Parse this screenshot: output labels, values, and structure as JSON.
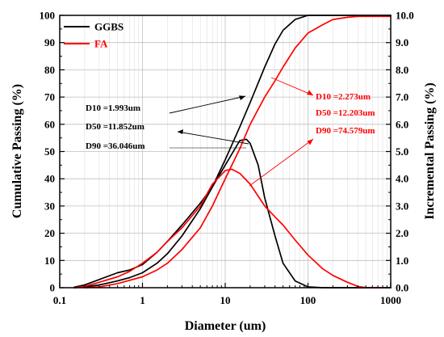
{
  "chart_data": {
    "type": "line",
    "x_scale": "log",
    "xlim": [
      0.1,
      1000
    ],
    "ylim": [
      0,
      100
    ],
    "y2lim": [
      0,
      10
    ],
    "xlabel": "Diameter (um)",
    "ylabel": "Cumulative Passing (%)",
    "y2label": "Incremental Passing (%)",
    "grid": true,
    "legend_position": "top-left",
    "x_ticks": [
      {
        "value": 0.1,
        "label": "0.1"
      },
      {
        "value": 1,
        "label": "1"
      },
      {
        "value": 10,
        "label": "10"
      },
      {
        "value": 100,
        "label": "100"
      },
      {
        "value": 1000,
        "label": "1000"
      }
    ],
    "y_ticks": [
      {
        "value": 0,
        "label": "0"
      },
      {
        "value": 10,
        "label": "10"
      },
      {
        "value": 20,
        "label": "20"
      },
      {
        "value": 30,
        "label": "30"
      },
      {
        "value": 40,
        "label": "40"
      },
      {
        "value": 50,
        "label": "50"
      },
      {
        "value": 60,
        "label": "60"
      },
      {
        "value": 70,
        "label": "70"
      },
      {
        "value": 80,
        "label": "80"
      },
      {
        "value": 90,
        "label": "90"
      },
      {
        "value": 100,
        "label": "100"
      }
    ],
    "y2_ticks": [
      {
        "value": 0,
        "label": "0.0"
      },
      {
        "value": 1,
        "label": "1.0"
      },
      {
        "value": 2,
        "label": "2.0"
      },
      {
        "value": 3,
        "label": "3.0"
      },
      {
        "value": 4,
        "label": "4.0"
      },
      {
        "value": 5,
        "label": "5.0"
      },
      {
        "value": 6,
        "label": "6.0"
      },
      {
        "value": 7,
        "label": "7.0"
      },
      {
        "value": 8,
        "label": "8.0"
      },
      {
        "value": 9,
        "label": "9.0"
      },
      {
        "value": 10,
        "label": "10.0"
      }
    ],
    "legend": [
      {
        "label": "GGBS",
        "color": "#000000"
      },
      {
        "label": "FA",
        "color": "#ff0000"
      }
    ],
    "series": [
      {
        "name": "GGBS",
        "kind": "cumulative",
        "axis": "left",
        "color": "#000000",
        "x": [
          0.15,
          0.2,
          0.3,
          0.5,
          0.7,
          1,
          1.5,
          2,
          3,
          5,
          7,
          10,
          15,
          20,
          30,
          40,
          50,
          70,
          100,
          200,
          1000
        ],
        "y": [
          0,
          0.3,
          1,
          2.5,
          3.7,
          5.5,
          9,
          12.5,
          19,
          29,
          37,
          47,
          59,
          68,
          81,
          89.5,
          94.5,
          98.5,
          100,
          100,
          100
        ]
      },
      {
        "name": "GGBS",
        "kind": "incremental",
        "axis": "right",
        "color": "#000000",
        "x": [
          0.15,
          0.2,
          0.3,
          0.5,
          0.7,
          1,
          1.5,
          2,
          3,
          5,
          7,
          10,
          15,
          18,
          20,
          25,
          30,
          40,
          50,
          70,
          100,
          150,
          1000
        ],
        "y": [
          0.02,
          0.1,
          0.3,
          0.55,
          0.65,
          0.85,
          1.3,
          1.7,
          2.3,
          3.1,
          3.7,
          4.5,
          5.4,
          5.45,
          5.3,
          4.5,
          3.3,
          1.9,
          0.9,
          0.25,
          0.03,
          0,
          0
        ]
      },
      {
        "name": "FA",
        "kind": "cumulative",
        "axis": "left",
        "color": "#ff0000",
        "x": [
          0.2,
          0.3,
          0.5,
          1,
          1.5,
          2,
          3,
          5,
          7,
          10,
          15,
          20,
          30,
          40,
          50,
          70,
          100,
          150,
          200,
          300,
          400,
          1000
        ],
        "y": [
          0,
          0.3,
          1.5,
          4,
          6.5,
          9,
          14,
          22,
          30,
          40,
          51,
          60,
          70,
          76,
          81,
          88,
          93.5,
          96.5,
          98.5,
          99.3,
          99.6,
          99.6
        ]
      },
      {
        "name": "FA",
        "kind": "incremental",
        "axis": "right",
        "color": "#ff0000",
        "x": [
          0.15,
          0.2,
          0.3,
          0.5,
          0.7,
          1,
          1.5,
          2,
          3,
          5,
          7,
          10,
          12,
          15,
          20,
          30,
          40,
          50,
          70,
          100,
          150,
          200,
          300,
          400,
          500,
          1000
        ],
        "y": [
          0,
          0.05,
          0.2,
          0.4,
          0.6,
          0.9,
          1.3,
          1.7,
          2.2,
          3,
          3.8,
          4.3,
          4.35,
          4.2,
          3.8,
          3,
          2.6,
          2.3,
          1.75,
          1.2,
          0.7,
          0.45,
          0.2,
          0.05,
          0,
          0
        ]
      }
    ],
    "annotations": [
      {
        "text": "D10 =1.993um",
        "color": "#000000"
      },
      {
        "text": "D50 =11.852um",
        "color": "#000000"
      },
      {
        "text": "D90 =36.046um",
        "color": "#000000"
      },
      {
        "text": "D10 =2.273um",
        "color": "#ff0000"
      },
      {
        "text": "D50 =12.203um",
        "color": "#ff0000"
      },
      {
        "text": "D90 =74.579um",
        "color": "#ff0000"
      }
    ]
  }
}
